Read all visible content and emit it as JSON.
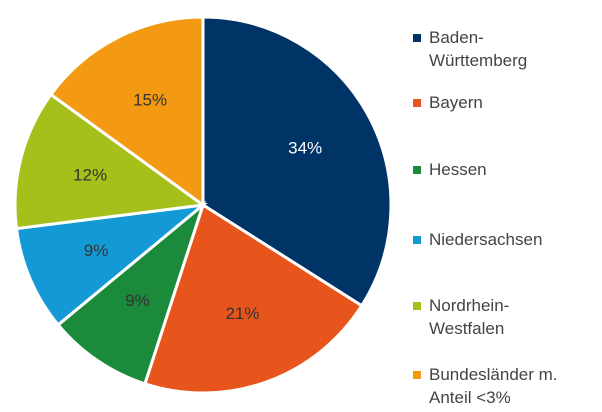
{
  "chart_data": {
    "type": "pie",
    "categories": [
      "Baden-Württemberg",
      "Bayern",
      "Hessen",
      "Niedersachsen",
      "Nordrhein-Westfalen",
      "Bundesländer m. Anteil <3%"
    ],
    "values": [
      34,
      21,
      9,
      9,
      12,
      15
    ],
    "value_labels": [
      "34%",
      "21%",
      "9%",
      "9%",
      "12%",
      "15%"
    ],
    "colors": [
      "#003466",
      "#e8551c",
      "#1b8a3a",
      "#139ad6",
      "#a7bf1a",
      "#f39a12"
    ],
    "legend": "right"
  }
}
